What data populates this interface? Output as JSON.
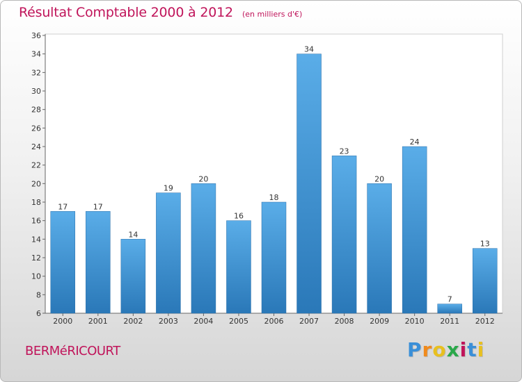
{
  "title": "Résultat Comptable 2000 à 2012",
  "subtitle": "(en milliers d'€)",
  "commune": "BERMéRICOURT",
  "logo": {
    "letters": [
      "P",
      "r",
      "o",
      "x",
      "i",
      "t",
      "i"
    ],
    "colors": [
      "#3a8fd8",
      "#f08a1c",
      "#e8c020",
      "#2aa84a",
      "#c0145a",
      "#3a8fd8",
      "#e8c020"
    ]
  },
  "colors": {
    "bar_top": "#5aade8",
    "bar_bottom": "#2a78b8",
    "accent": "#c0145a"
  },
  "chart_data": {
    "type": "bar",
    "title": "Résultat Comptable 2000 à 2012",
    "subtitle": "(en milliers d'€)",
    "categories": [
      "2000",
      "2001",
      "2002",
      "2003",
      "2004",
      "2005",
      "2006",
      "2007",
      "2008",
      "2009",
      "2010",
      "2011",
      "2012"
    ],
    "values": [
      17,
      17,
      14,
      19,
      20,
      16,
      18,
      34,
      23,
      20,
      24,
      7,
      13
    ],
    "ylim": [
      6,
      36
    ],
    "yticks": [
      6,
      8,
      10,
      12,
      14,
      16,
      18,
      20,
      22,
      24,
      26,
      28,
      30,
      32,
      34,
      36
    ],
    "grid": false
  }
}
